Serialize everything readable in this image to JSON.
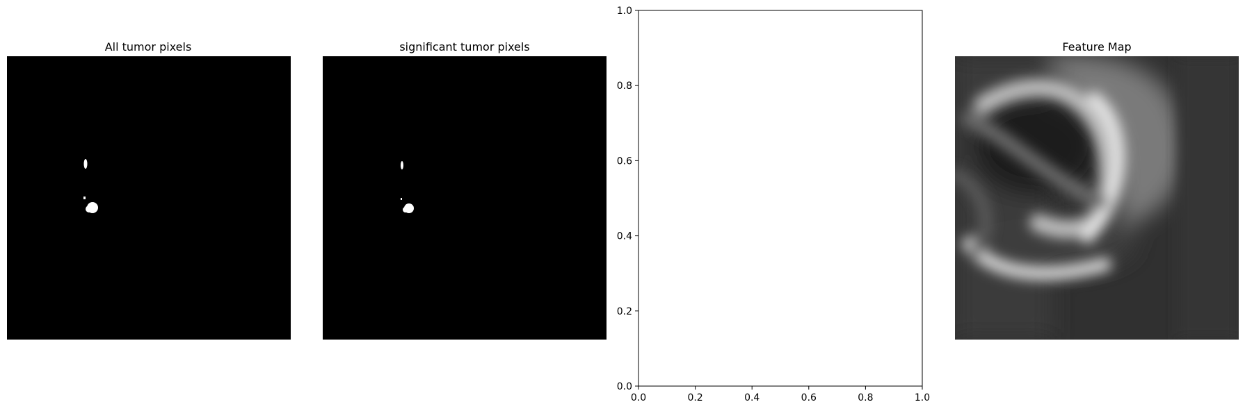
{
  "panels": {
    "all_tumor": {
      "title": "All tumor pixels"
    },
    "significant_tumor": {
      "title": "significant tumor pixels"
    },
    "feature_map": {
      "title": "Feature Map"
    }
  },
  "chart_data": [
    {
      "type": "heatmap",
      "title": "All tumor pixels",
      "description_values": {
        "background": "#000000",
        "foreground": "#ffffff"
      },
      "axis": "off"
    },
    {
      "type": "heatmap",
      "title": "significant tumor pixels",
      "description_values": {
        "background": "#000000",
        "foreground": "#ffffff"
      },
      "axis": "off"
    },
    {
      "type": "scatter",
      "title": "",
      "x": [],
      "y": [],
      "xlim": [
        0,
        1
      ],
      "ylim": [
        0,
        1
      ],
      "xticks": [
        "0.0",
        "0.2",
        "0.4",
        "0.6",
        "0.8",
        "1.0"
      ],
      "yticks": [
        "0.0",
        "0.2",
        "0.4",
        "0.6",
        "0.8",
        "1.0"
      ],
      "xtick_values": [
        0,
        0.2,
        0.4,
        0.6,
        0.8,
        1.0
      ],
      "ytick_values": [
        0,
        0.2,
        0.4,
        0.6,
        0.8,
        1.0
      ],
      "grid": false
    },
    {
      "type": "heatmap",
      "title": "Feature Map",
      "colormap": "gray",
      "axis": "off"
    }
  ]
}
